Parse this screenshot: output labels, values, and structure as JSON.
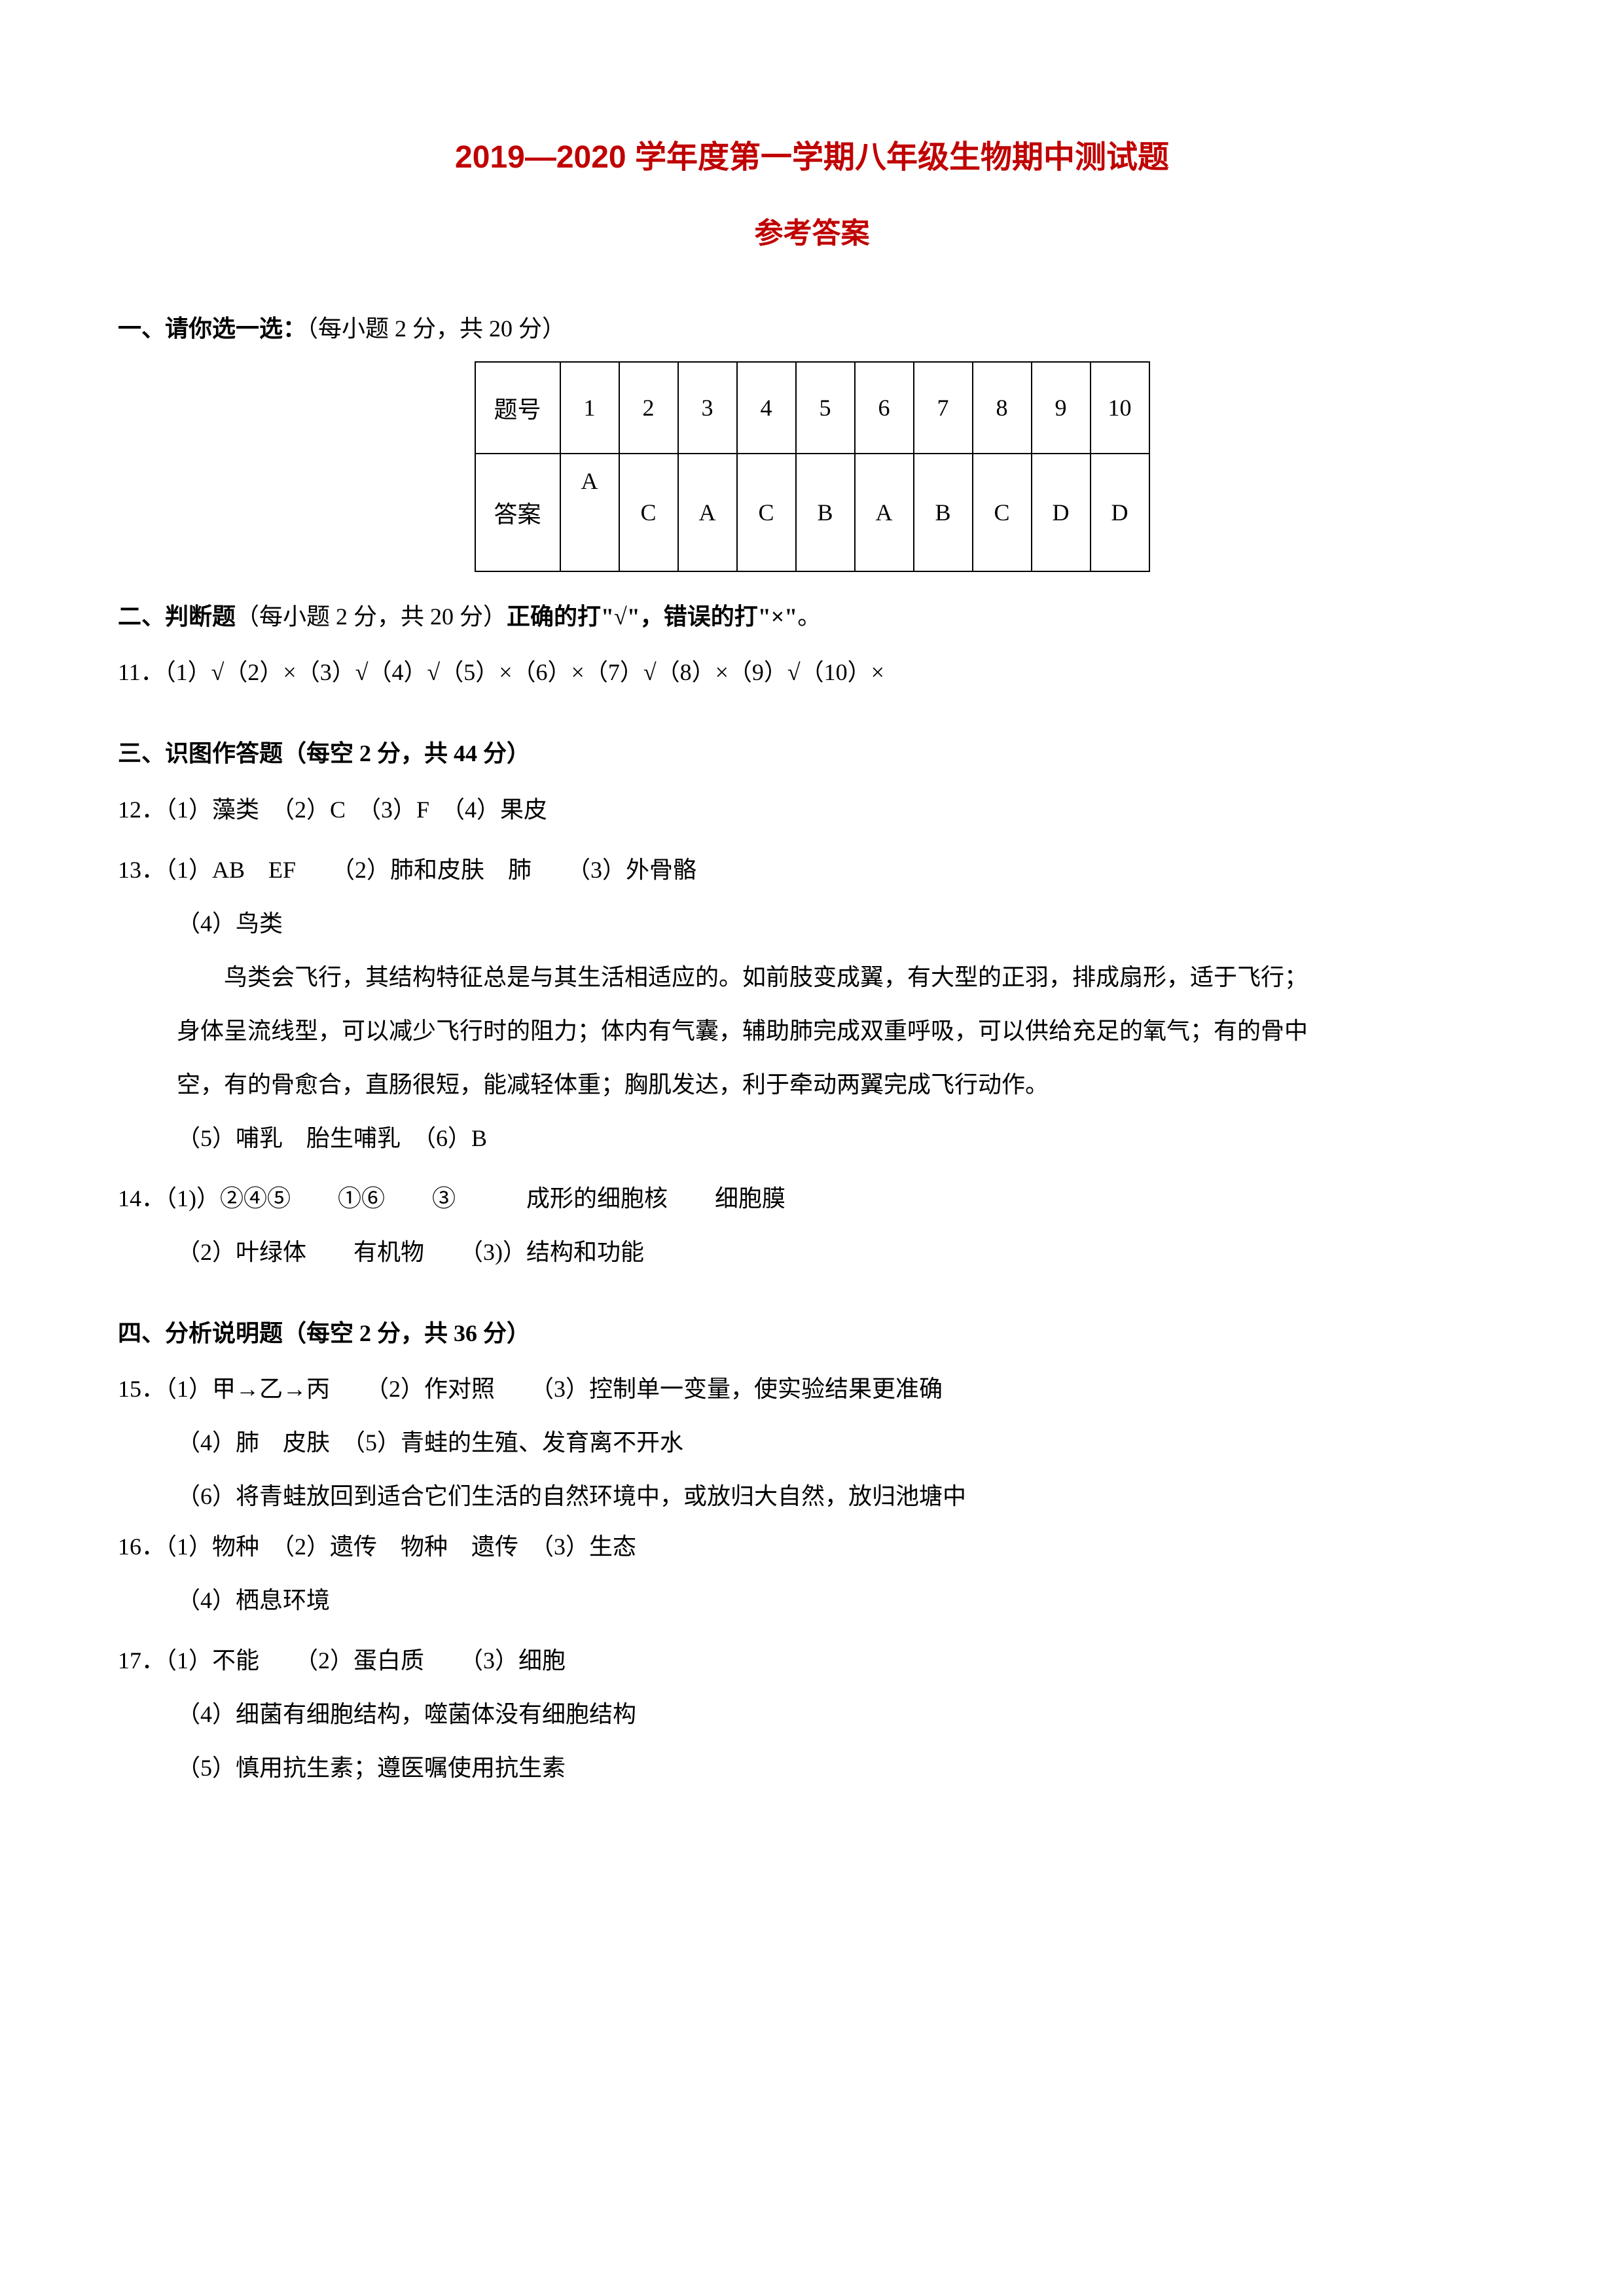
{
  "doc": {
    "title_main": "2019—2020 学年度第一学期八年级生物期中测试题",
    "title_sub": "参考答案",
    "section1": {
      "heading_bold": "一、请你选一选：",
      "heading_rest": "（每小题 2 分，共 20 分）",
      "table": {
        "row_header_1": "题号",
        "row_header_2": "答案",
        "columns": [
          "1",
          "2",
          "3",
          "4",
          "5",
          "6",
          "7",
          "8",
          "9",
          "10"
        ],
        "answers": [
          "A",
          "C",
          "A",
          "C",
          "B",
          "A",
          "B",
          "C",
          "D",
          "D"
        ]
      }
    },
    "section2": {
      "heading_prefix": "二、判断题",
      "heading_mid": "（每小题 2 分，共 20 分）",
      "heading_bold2": "正确的打\"√\"，错误的打\"×\"",
      "heading_end": "。",
      "line": "11．（1）√（2）×（3）√（4）√（5）×（6）×（7）√（8）×（9）√（10）×"
    },
    "section3": {
      "heading": "三、识图作答题（每空 2 分，共 44 分）",
      "q12": "12．（1）藻类　（2）C　（3）F　（4）果皮",
      "q13_l1": "13．（1）AB　EF　　（2）肺和皮肤　肺　　（3）外骨骼",
      "q13_l2": "（4）鸟类",
      "q13_l3": "鸟类会飞行，其结构特征总是与其生活相适应的。如前肢变成翼，有大型的正羽，排成扇形，适于飞行；",
      "q13_l4": "身体呈流线型，可以减少飞行时的阻力；体内有气囊，辅助肺完成双重呼吸，可以供给充足的氧气；有的骨中",
      "q13_l5": "空，有的骨愈合，直肠很短，能减轻体重；胸肌发达，利于牵动两翼完成飞行动作。",
      "q13_l6": "（5）哺乳　胎生哺乳　（6）B",
      "q14_l1": "14．（1)）②④⑤　　①⑥　　③　　　成形的细胞核　　细胞膜",
      "q14_l2": "（2）叶绿体　　有机物　　（3)）结构和功能"
    },
    "section4": {
      "heading": "四、分析说明题（每空 2 分，共 36 分）",
      "q15_l1": "15．（1）甲→乙→丙　　（2）作对照　　（3）控制单一变量，使实验结果更准确",
      "q15_l2": "（4）肺　皮肤　（5）青蛙的生殖、发育离不开水",
      "q15_l3": "（6）将青蛙放回到适合它们生活的自然环境中，或放归大自然，放归池塘中",
      "q16_l1": "16．（1）物种　（2）遗传　物种　遗传　（3）生态",
      "q16_l2": "（4）栖息环境",
      "q17_l1": "17．（1）不能　　（2）蛋白质　　（3）细胞",
      "q17_l2": "（4）细菌有细胞结构，噬菌体没有细胞结构",
      "q17_l3": "（5）慎用抗生素；遵医嘱使用抗生素"
    }
  },
  "style": {
    "title_color": "#c00000",
    "text_color": "#000000",
    "background": "#ffffff",
    "border_color": "#000000",
    "title_fontsize": 48,
    "subtitle_fontsize": 44,
    "body_fontsize": 36
  }
}
